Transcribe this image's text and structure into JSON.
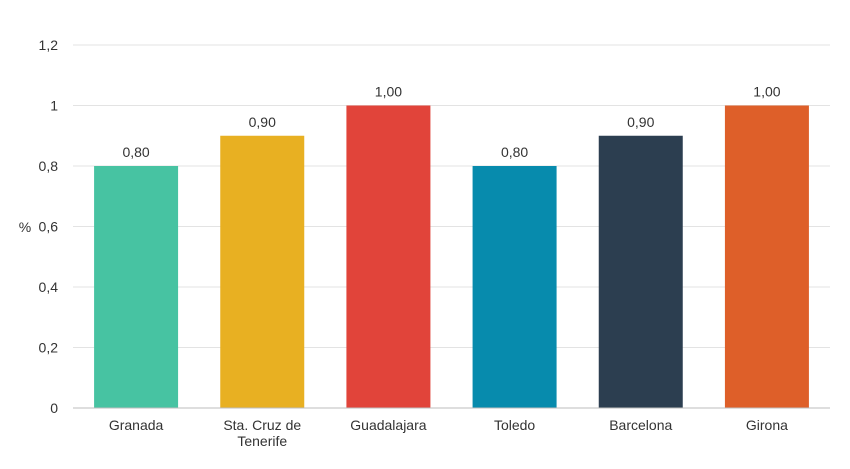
{
  "chart_data": {
    "type": "bar",
    "title": "",
    "xlabel": "",
    "ylabel": "%",
    "ylim": [
      0,
      1.2
    ],
    "yticks": [
      "0",
      "0,2",
      "0,4",
      "0,6",
      "0,8",
      "1",
      "1,2"
    ],
    "ytick_values": [
      0,
      0.2,
      0.4,
      0.6,
      0.8,
      1.0,
      1.2
    ],
    "grid": true,
    "legend": "none",
    "categories": [
      [
        "Granada"
      ],
      [
        "Sta. Cruz de",
        "Tenerife"
      ],
      [
        "Guadalajara"
      ],
      [
        "Toledo"
      ],
      [
        "Barcelona"
      ],
      [
        "Girona"
      ]
    ],
    "values": [
      0.8,
      0.9,
      1.0,
      0.8,
      0.9,
      1.0
    ],
    "data_labels": [
      "0,80",
      "0,90",
      "1,00",
      "0,80",
      "0,90",
      "1,00"
    ],
    "colors": [
      "#47c3a2",
      "#e8b022",
      "#e1443a",
      "#078bad",
      "#2c3e50",
      "#de5f29"
    ]
  }
}
